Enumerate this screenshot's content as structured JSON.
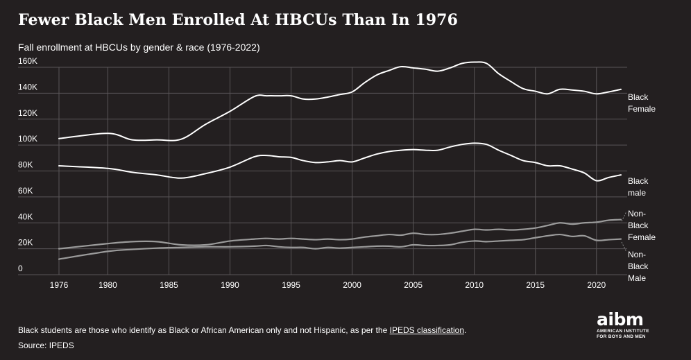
{
  "title": "Fewer Black Men Enrolled At HBCUs Than In 1976",
  "subtitle": "Fall enrollment at HBCUs by gender & race (1976-2022)",
  "footnote": {
    "text_before": "Black students are those who identify as Black or African American only and not Hispanic, as per the ",
    "link": "IPEDS classification",
    "text_after": "."
  },
  "source": "Source: IPEDS",
  "logo": {
    "mark": "aibm",
    "line1": "AMERICAN INSTITUTE",
    "line2": "FOR BOYS AND MEN"
  },
  "colors": {
    "background": "#231f20",
    "black_series": "#ffffff",
    "nonblack_series": "#9b9b9b",
    "grid": "#5a5658"
  },
  "chart_data": {
    "type": "line",
    "xlabel": "",
    "ylabel": "",
    "xlim": [
      1976,
      2022
    ],
    "ylim": [
      0,
      160000
    ],
    "x_ticks": [
      1976,
      1980,
      1985,
      1990,
      1995,
      2000,
      2005,
      2010,
      2015,
      2020
    ],
    "y_ticks": [
      0,
      20000,
      40000,
      60000,
      80000,
      100000,
      120000,
      140000,
      160000
    ],
    "y_tick_labels": [
      "0",
      "20K",
      "40K",
      "60K",
      "80K",
      "100K",
      "120K",
      "140K",
      "160K"
    ],
    "grid": true,
    "legend": "direct labels at line ends (right)",
    "series": [
      {
        "name": "Black Female",
        "label_lines": [
          "Black",
          "Female"
        ],
        "color": "#ffffff",
        "x": [
          1976,
          1980,
          1982,
          1984,
          1986,
          1988,
          1990,
          1992,
          1993,
          1994,
          1995,
          1996,
          1997,
          1998,
          1999,
          2000,
          2001,
          2002,
          2003,
          2004,
          2005,
          2006,
          2007,
          2008,
          2009,
          2010,
          2011,
          2012,
          2013,
          2014,
          2015,
          2016,
          2017,
          2018,
          2019,
          2020,
          2021,
          2022
        ],
        "y": [
          105000,
          109000,
          104000,
          104000,
          104500,
          116000,
          126000,
          137500,
          138000,
          138000,
          138000,
          135500,
          135500,
          137000,
          139000,
          141000,
          148000,
          154000,
          157500,
          160500,
          159500,
          158500,
          157000,
          159500,
          163000,
          164000,
          163000,
          155000,
          149000,
          143500,
          141500,
          139500,
          143000,
          142500,
          141500,
          139500,
          141000,
          143000
        ]
      },
      {
        "name": "Black male",
        "label_lines": [
          "Black",
          "male"
        ],
        "color": "#ffffff",
        "x": [
          1976,
          1980,
          1982,
          1984,
          1986,
          1988,
          1990,
          1992,
          1993,
          1994,
          1995,
          1996,
          1997,
          1998,
          1999,
          2000,
          2001,
          2002,
          2003,
          2004,
          2005,
          2006,
          2007,
          2008,
          2009,
          2010,
          2011,
          2012,
          2013,
          2014,
          2015,
          2016,
          2017,
          2018,
          2019,
          2020,
          2021,
          2022
        ],
        "y": [
          84000,
          82000,
          79000,
          77000,
          74500,
          78000,
          83000,
          91000,
          92000,
          91000,
          90500,
          88000,
          86500,
          87000,
          88000,
          87000,
          90000,
          93000,
          95000,
          96000,
          96500,
          96000,
          96000,
          98500,
          100500,
          101500,
          100500,
          96000,
          92000,
          88000,
          86500,
          84000,
          84000,
          81500,
          78500,
          72500,
          75000,
          77000
        ]
      },
      {
        "name": "Non-Black Female",
        "label_lines": [
          "Non-",
          "Black",
          "Female"
        ],
        "color": "#9b9b9b",
        "x": [
          1976,
          1980,
          1982,
          1984,
          1986,
          1988,
          1990,
          1992,
          1993,
          1994,
          1995,
          1996,
          1997,
          1998,
          1999,
          2000,
          2001,
          2002,
          2003,
          2004,
          2005,
          2006,
          2007,
          2008,
          2009,
          2010,
          2011,
          2012,
          2013,
          2014,
          2015,
          2016,
          2017,
          2018,
          2019,
          2020,
          2021,
          2022
        ],
        "y": [
          20000,
          24000,
          25500,
          25500,
          23000,
          23000,
          26000,
          27500,
          28000,
          27500,
          28000,
          27500,
          27000,
          27500,
          27000,
          27500,
          29000,
          30000,
          31000,
          30500,
          32000,
          31000,
          31000,
          32000,
          33500,
          35000,
          34500,
          35000,
          34500,
          35000,
          36000,
          38000,
          40000,
          39000,
          40000,
          40500,
          42000,
          42500
        ]
      },
      {
        "name": "Non-Black Male",
        "label_lines": [
          "Non-",
          "Black",
          "Male"
        ],
        "color": "#9b9b9b",
        "x": [
          1976,
          1980,
          1982,
          1984,
          1986,
          1988,
          1990,
          1992,
          1993,
          1994,
          1995,
          1996,
          1997,
          1998,
          1999,
          2000,
          2001,
          2002,
          2003,
          2004,
          2005,
          2006,
          2007,
          2008,
          2009,
          2010,
          2011,
          2012,
          2013,
          2014,
          2015,
          2016,
          2017,
          2018,
          2019,
          2020,
          2021,
          2022
        ],
        "y": [
          12000,
          18000,
          19500,
          20500,
          21000,
          21500,
          21500,
          22000,
          22500,
          21500,
          21000,
          21000,
          20000,
          21000,
          20500,
          21000,
          21500,
          22000,
          22000,
          21500,
          23000,
          22500,
          22500,
          23000,
          25000,
          26000,
          25500,
          26000,
          26500,
          27000,
          28500,
          30000,
          31000,
          29500,
          30000,
          26500,
          27000,
          27500
        ]
      }
    ]
  }
}
